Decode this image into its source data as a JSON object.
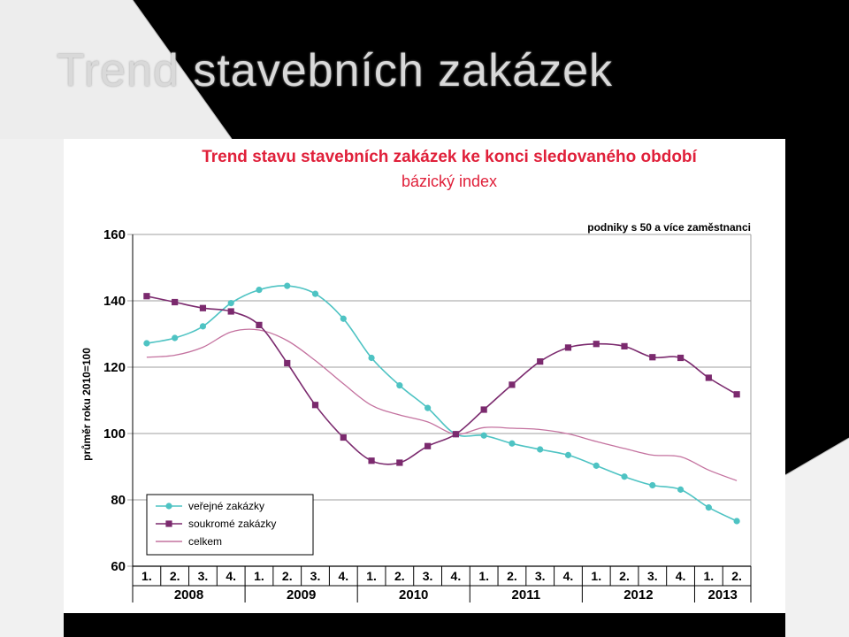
{
  "slide": {
    "title": "Trend stavebních zakázek"
  },
  "colors": {
    "background": "#000000",
    "panel": "#ffffff",
    "title_text": "#d9d9d9",
    "chart_title": "#e0203a",
    "chart_subtitle": "#e0203a",
    "grid": "#9f9f9f"
  },
  "chart_data": {
    "type": "line",
    "title": "Trend stavu stavebních zakázek ke konci sledovaného období",
    "subtitle": "bázický index",
    "note": "podniky s 50 a více zaměstnanci",
    "xlabel": "",
    "ylabel": "průměr roku 2010=100",
    "ylim": [
      60,
      160
    ],
    "yticks": [
      60,
      80,
      100,
      120,
      140,
      160
    ],
    "grid": true,
    "legend": "bottom-left",
    "x": [
      "1.",
      "2.",
      "3.",
      "4.",
      "1.",
      "2.",
      "3.",
      "4.",
      "1.",
      "2.",
      "3.",
      "4.",
      "1.",
      "2.",
      "3.",
      "4.",
      "1.",
      "2.",
      "3.",
      "4.",
      "1.",
      "2."
    ],
    "years": [
      {
        "label": "2008",
        "quarters": 4
      },
      {
        "label": "2009",
        "quarters": 4
      },
      {
        "label": "2010",
        "quarters": 4
      },
      {
        "label": "2011",
        "quarters": 4
      },
      {
        "label": "2012",
        "quarters": 4
      },
      {
        "label": "2013",
        "quarters": 2
      }
    ],
    "series": [
      {
        "name": "veřejné zakázky",
        "color": "#4ec3c3",
        "marker": "circle",
        "values": [
          127.2,
          128.8,
          132.3,
          139.3,
          143.3,
          144.5,
          142.1,
          134.6,
          122.8,
          114.5,
          107.7,
          99.8,
          99.4,
          97.0,
          95.2,
          93.5,
          90.3,
          87.0,
          84.4,
          83.1,
          77.7,
          73.6
        ]
      },
      {
        "name": "soukromé zakázky",
        "color": "#7b2a6e",
        "marker": "square",
        "values": [
          141.4,
          139.6,
          137.8,
          136.8,
          132.7,
          121.2,
          108.6,
          98.8,
          91.8,
          91.2,
          96.2,
          99.8,
          107.2,
          114.7,
          121.7,
          125.9,
          127.0,
          126.3,
          123.0,
          122.8,
          116.8,
          111.8
        ]
      },
      {
        "name": "celkem",
        "color": "#c4729f",
        "marker": "none",
        "values": [
          123.0,
          123.6,
          126.0,
          130.6,
          131.2,
          128.0,
          122.0,
          115.0,
          108.5,
          105.6,
          103.5,
          99.8,
          101.8,
          101.6,
          101.2,
          99.9,
          97.6,
          95.5,
          93.5,
          93.0,
          89.0,
          85.8
        ]
      }
    ]
  }
}
